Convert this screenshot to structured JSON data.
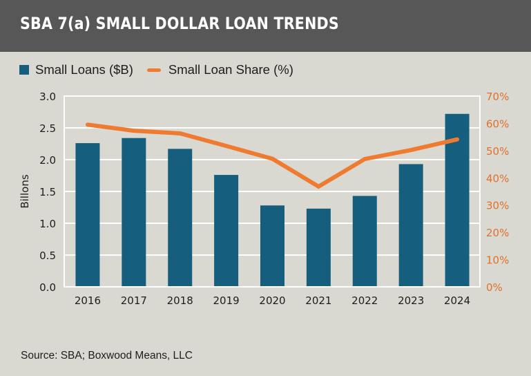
{
  "header": {
    "title": "SBA 7(a) SMALL DOLLAR LOAN TRENDS"
  },
  "legend": {
    "items": [
      {
        "label": "Small Loans ($B)",
        "type": "bar",
        "color": "#165e7e"
      },
      {
        "label": "Small Loan Share (%)",
        "type": "line",
        "color": "#ef7b30"
      }
    ]
  },
  "source": "Source: SBA; Boxwood Means, LLC",
  "colors": {
    "background": "#d9d8d1",
    "header": "#575757",
    "bar": "#165e7e",
    "line": "#ef7b30",
    "right_axis_text": "#e1702c",
    "grid": "#ffffff"
  },
  "chart_data": {
    "type": "bar+line",
    "title": "SBA 7(a) SMALL DOLLAR LOAN TRENDS",
    "categories": [
      "2016",
      "2017",
      "2018",
      "2019",
      "2020",
      "2021",
      "2022",
      "2023",
      "2024"
    ],
    "series": [
      {
        "name": "Small Loans ($B)",
        "type": "bar",
        "axis": "left",
        "values": [
          2.26,
          2.34,
          2.17,
          1.76,
          1.28,
          1.23,
          1.43,
          1.93,
          2.72
        ]
      },
      {
        "name": "Small Loan Share (%)",
        "type": "line",
        "axis": "right",
        "values": [
          59.5,
          57.3,
          56.3,
          51.7,
          47.0,
          36.8,
          46.9,
          50.2,
          54.1
        ]
      }
    ],
    "xlabel": "",
    "ylabel": "Billons",
    "ylim": [
      0,
      3.0
    ],
    "y_ticks": [
      "0.0",
      "0.5",
      "1.0",
      "1.5",
      "2.0",
      "2.5",
      "3.0"
    ],
    "y2lim": [
      0,
      70
    ],
    "y2_ticks": [
      "0%",
      "10%",
      "20%",
      "30%",
      "40%",
      "50%",
      "60%",
      "70%"
    ],
    "grid": true,
    "legend_position": "top-left"
  }
}
